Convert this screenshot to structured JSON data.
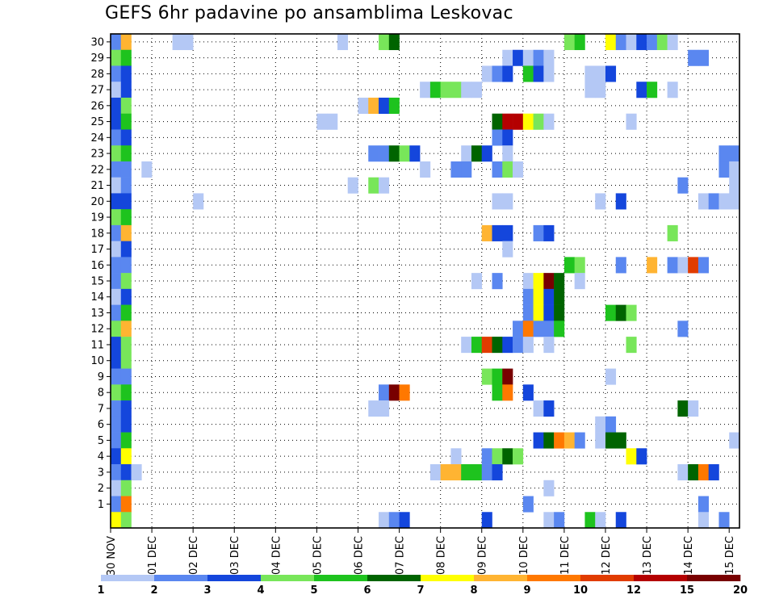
{
  "chart_data": {
    "type": "heatmap",
    "title": "GEFS 6hr padavine po ansamblima Leskovac",
    "xlabel": "",
    "ylabel": "",
    "y_ticks": [
      "1",
      "2",
      "3",
      "4",
      "5",
      "6",
      "7",
      "8",
      "9",
      "10",
      "11",
      "12",
      "13",
      "14",
      "15",
      "16",
      "17",
      "18",
      "19",
      "20",
      "21",
      "22",
      "23",
      "24",
      "25",
      "26",
      "27",
      "28",
      "29",
      "30"
    ],
    "x_ticks": [
      "30 NOV",
      "01 DEC",
      "02 DEC",
      "03 DEC",
      "04 DEC",
      "05 DEC",
      "06 DEC",
      "07 DEC",
      "08 DEC",
      "09 DEC",
      "10 DEC",
      "11 DEC",
      "12 DEC",
      "13 DEC",
      "14 DEC",
      "15 DEC"
    ],
    "x_steps_total": 61,
    "colorbar": {
      "labels": [
        "1",
        "2",
        "3",
        "4",
        "5",
        "6",
        "7",
        "8",
        "9",
        "10",
        "12",
        "15",
        "20"
      ],
      "colors": [
        "#b4c8f5",
        "#5a87f0",
        "#1446dc",
        "#78e65a",
        "#1ec31e",
        "#006400",
        "#ffff00",
        "#ffb432",
        "#ff7800",
        "#e13c00",
        "#b40000",
        "#780000"
      ]
    },
    "grid": true,
    "cells": [
      {
        "m": 30,
        "t": 0,
        "c": 1
      },
      {
        "m": 30,
        "t": 1,
        "c": 7
      },
      {
        "m": 30,
        "t": 6,
        "c": 0
      },
      {
        "m": 30,
        "t": 7,
        "c": 0
      },
      {
        "m": 30,
        "t": 22,
        "c": 0
      },
      {
        "m": 30,
        "t": 26,
        "c": 3
      },
      {
        "m": 30,
        "t": 27,
        "c": 5
      },
      {
        "m": 30,
        "t": 44,
        "c": 3
      },
      {
        "m": 30,
        "t": 45,
        "c": 4
      },
      {
        "m": 30,
        "t": 48,
        "c": 6
      },
      {
        "m": 30,
        "t": 49,
        "c": 1
      },
      {
        "m": 30,
        "t": 50,
        "c": 0
      },
      {
        "m": 30,
        "t": 51,
        "c": 2
      },
      {
        "m": 30,
        "t": 52,
        "c": 1
      },
      {
        "m": 30,
        "t": 53,
        "c": 3
      },
      {
        "m": 30,
        "t": 54,
        "c": 0
      },
      {
        "m": 29,
        "t": 0,
        "c": 3
      },
      {
        "m": 29,
        "t": 1,
        "c": 4
      },
      {
        "m": 29,
        "t": 38,
        "c": 0
      },
      {
        "m": 29,
        "t": 39,
        "c": 2
      },
      {
        "m": 29,
        "t": 40,
        "c": 0
      },
      {
        "m": 29,
        "t": 41,
        "c": 1
      },
      {
        "m": 29,
        "t": 42,
        "c": 0
      },
      {
        "m": 29,
        "t": 56,
        "c": 1
      },
      {
        "m": 29,
        "t": 57,
        "c": 1
      },
      {
        "m": 28,
        "t": 0,
        "c": 1
      },
      {
        "m": 28,
        "t": 1,
        "c": 2
      },
      {
        "m": 28,
        "t": 36,
        "c": 0
      },
      {
        "m": 28,
        "t": 37,
        "c": 1
      },
      {
        "m": 28,
        "t": 38,
        "c": 2
      },
      {
        "m": 28,
        "t": 40,
        "c": 4
      },
      {
        "m": 28,
        "t": 41,
        "c": 2
      },
      {
        "m": 28,
        "t": 42,
        "c": 0
      },
      {
        "m": 28,
        "t": 46,
        "c": 0
      },
      {
        "m": 28,
        "t": 47,
        "c": 0
      },
      {
        "m": 28,
        "t": 48,
        "c": 2
      },
      {
        "m": 27,
        "t": 0,
        "c": 0
      },
      {
        "m": 27,
        "t": 1,
        "c": 2
      },
      {
        "m": 27,
        "t": 30,
        "c": 0
      },
      {
        "m": 27,
        "t": 31,
        "c": 4
      },
      {
        "m": 27,
        "t": 32,
        "c": 3
      },
      {
        "m": 27,
        "t": 33,
        "c": 3
      },
      {
        "m": 27,
        "t": 34,
        "c": 0
      },
      {
        "m": 27,
        "t": 35,
        "c": 0
      },
      {
        "m": 27,
        "t": 46,
        "c": 0
      },
      {
        "m": 27,
        "t": 47,
        "c": 0
      },
      {
        "m": 27,
        "t": 51,
        "c": 2
      },
      {
        "m": 27,
        "t": 52,
        "c": 4
      },
      {
        "m": 27,
        "t": 54,
        "c": 0
      },
      {
        "m": 26,
        "t": 0,
        "c": 2
      },
      {
        "m": 26,
        "t": 1,
        "c": 3
      },
      {
        "m": 26,
        "t": 24,
        "c": 0
      },
      {
        "m": 26,
        "t": 25,
        "c": 7
      },
      {
        "m": 26,
        "t": 26,
        "c": 2
      },
      {
        "m": 26,
        "t": 27,
        "c": 4
      },
      {
        "m": 25,
        "t": 0,
        "c": 2
      },
      {
        "m": 25,
        "t": 1,
        "c": 4
      },
      {
        "m": 25,
        "t": 20,
        "c": 0
      },
      {
        "m": 25,
        "t": 21,
        "c": 0
      },
      {
        "m": 25,
        "t": 37,
        "c": 5
      },
      {
        "m": 25,
        "t": 38,
        "c": 10
      },
      {
        "m": 25,
        "t": 39,
        "c": 10
      },
      {
        "m": 25,
        "t": 40,
        "c": 6
      },
      {
        "m": 25,
        "t": 41,
        "c": 3
      },
      {
        "m": 25,
        "t": 42,
        "c": 0
      },
      {
        "m": 25,
        "t": 50,
        "c": 0
      },
      {
        "m": 24,
        "t": 0,
        "c": 1
      },
      {
        "m": 24,
        "t": 1,
        "c": 2
      },
      {
        "m": 24,
        "t": 37,
        "c": 1
      },
      {
        "m": 24,
        "t": 38,
        "c": 2
      },
      {
        "m": 23,
        "t": 0,
        "c": 3
      },
      {
        "m": 23,
        "t": 1,
        "c": 4
      },
      {
        "m": 23,
        "t": 25,
        "c": 1
      },
      {
        "m": 23,
        "t": 26,
        "c": 1
      },
      {
        "m": 23,
        "t": 27,
        "c": 5
      },
      {
        "m": 23,
        "t": 28,
        "c": 3
      },
      {
        "m": 23,
        "t": 29,
        "c": 2
      },
      {
        "m": 23,
        "t": 34,
        "c": 0
      },
      {
        "m": 23,
        "t": 35,
        "c": 5
      },
      {
        "m": 23,
        "t": 36,
        "c": 2
      },
      {
        "m": 23,
        "t": 38,
        "c": 0
      },
      {
        "m": 23,
        "t": 59,
        "c": 1
      },
      {
        "m": 23,
        "t": 60,
        "c": 1
      },
      {
        "m": 22,
        "t": 0,
        "c": 1
      },
      {
        "m": 22,
        "t": 1,
        "c": 1
      },
      {
        "m": 22,
        "t": 3,
        "c": 0
      },
      {
        "m": 22,
        "t": 30,
        "c": 0
      },
      {
        "m": 22,
        "t": 33,
        "c": 1
      },
      {
        "m": 22,
        "t": 34,
        "c": 1
      },
      {
        "m": 22,
        "t": 37,
        "c": 1
      },
      {
        "m": 22,
        "t": 38,
        "c": 3
      },
      {
        "m": 22,
        "t": 39,
        "c": 0
      },
      {
        "m": 22,
        "t": 59,
        "c": 1
      },
      {
        "m": 22,
        "t": 60,
        "c": 0
      },
      {
        "m": 21,
        "t": 0,
        "c": 0
      },
      {
        "m": 21,
        "t": 1,
        "c": 1
      },
      {
        "m": 21,
        "t": 23,
        "c": 0
      },
      {
        "m": 21,
        "t": 25,
        "c": 3
      },
      {
        "m": 21,
        "t": 26,
        "c": 0
      },
      {
        "m": 21,
        "t": 55,
        "c": 1
      },
      {
        "m": 21,
        "t": 60,
        "c": 0
      },
      {
        "m": 20,
        "t": 0,
        "c": 2
      },
      {
        "m": 20,
        "t": 1,
        "c": 2
      },
      {
        "m": 20,
        "t": 8,
        "c": 0
      },
      {
        "m": 20,
        "t": 37,
        "c": 0
      },
      {
        "m": 20,
        "t": 38,
        "c": 0
      },
      {
        "m": 20,
        "t": 47,
        "c": 0
      },
      {
        "m": 20,
        "t": 49,
        "c": 2
      },
      {
        "m": 20,
        "t": 57,
        "c": 0
      },
      {
        "m": 20,
        "t": 58,
        "c": 1
      },
      {
        "m": 20,
        "t": 59,
        "c": 0
      },
      {
        "m": 20,
        "t": 60,
        "c": 0
      },
      {
        "m": 19,
        "t": 0,
        "c": 3
      },
      {
        "m": 19,
        "t": 1,
        "c": 4
      },
      {
        "m": 18,
        "t": 0,
        "c": 1
      },
      {
        "m": 18,
        "t": 1,
        "c": 7
      },
      {
        "m": 18,
        "t": 36,
        "c": 7
      },
      {
        "m": 18,
        "t": 37,
        "c": 2
      },
      {
        "m": 18,
        "t": 38,
        "c": 2
      },
      {
        "m": 18,
        "t": 41,
        "c": 1
      },
      {
        "m": 18,
        "t": 42,
        "c": 2
      },
      {
        "m": 18,
        "t": 54,
        "c": 3
      },
      {
        "m": 17,
        "t": 0,
        "c": 0
      },
      {
        "m": 17,
        "t": 1,
        "c": 2
      },
      {
        "m": 17,
        "t": 38,
        "c": 0
      },
      {
        "m": 16,
        "t": 0,
        "c": 1
      },
      {
        "m": 16,
        "t": 1,
        "c": 1
      },
      {
        "m": 16,
        "t": 44,
        "c": 4
      },
      {
        "m": 16,
        "t": 45,
        "c": 3
      },
      {
        "m": 16,
        "t": 49,
        "c": 1
      },
      {
        "m": 16,
        "t": 52,
        "c": 7
      },
      {
        "m": 16,
        "t": 54,
        "c": 1
      },
      {
        "m": 16,
        "t": 55,
        "c": 0
      },
      {
        "m": 16,
        "t": 56,
        "c": 9
      },
      {
        "m": 16,
        "t": 57,
        "c": 1
      },
      {
        "m": 15,
        "t": 0,
        "c": 1
      },
      {
        "m": 15,
        "t": 1,
        "c": 3
      },
      {
        "m": 15,
        "t": 35,
        "c": 0
      },
      {
        "m": 15,
        "t": 37,
        "c": 1
      },
      {
        "m": 15,
        "t": 40,
        "c": 0
      },
      {
        "m": 15,
        "t": 41,
        "c": 6
      },
      {
        "m": 15,
        "t": 42,
        "c": 11
      },
      {
        "m": 15,
        "t": 43,
        "c": 5
      },
      {
        "m": 15,
        "t": 45,
        "c": 0
      },
      {
        "m": 14,
        "t": 0,
        "c": 0
      },
      {
        "m": 14,
        "t": 1,
        "c": 2
      },
      {
        "m": 14,
        "t": 40,
        "c": 1
      },
      {
        "m": 14,
        "t": 41,
        "c": 6
      },
      {
        "m": 14,
        "t": 42,
        "c": 2
      },
      {
        "m": 14,
        "t": 43,
        "c": 5
      },
      {
        "m": 13,
        "t": 0,
        "c": 1
      },
      {
        "m": 13,
        "t": 1,
        "c": 4
      },
      {
        "m": 13,
        "t": 40,
        "c": 1
      },
      {
        "m": 13,
        "t": 41,
        "c": 6
      },
      {
        "m": 13,
        "t": 42,
        "c": 2
      },
      {
        "m": 13,
        "t": 43,
        "c": 5
      },
      {
        "m": 13,
        "t": 48,
        "c": 4
      },
      {
        "m": 13,
        "t": 49,
        "c": 5
      },
      {
        "m": 13,
        "t": 50,
        "c": 3
      },
      {
        "m": 12,
        "t": 0,
        "c": 3
      },
      {
        "m": 12,
        "t": 1,
        "c": 7
      },
      {
        "m": 12,
        "t": 39,
        "c": 1
      },
      {
        "m": 12,
        "t": 40,
        "c": 8
      },
      {
        "m": 12,
        "t": 41,
        "c": 1
      },
      {
        "m": 12,
        "t": 42,
        "c": 1
      },
      {
        "m": 12,
        "t": 43,
        "c": 4
      },
      {
        "m": 12,
        "t": 55,
        "c": 1
      },
      {
        "m": 11,
        "t": 0,
        "c": 2
      },
      {
        "m": 11,
        "t": 1,
        "c": 3
      },
      {
        "m": 11,
        "t": 34,
        "c": 0
      },
      {
        "m": 11,
        "t": 35,
        "c": 4
      },
      {
        "m": 11,
        "t": 36,
        "c": 9
      },
      {
        "m": 11,
        "t": 37,
        "c": 5
      },
      {
        "m": 11,
        "t": 38,
        "c": 2
      },
      {
        "m": 11,
        "t": 39,
        "c": 1
      },
      {
        "m": 11,
        "t": 40,
        "c": 0
      },
      {
        "m": 11,
        "t": 42,
        "c": 0
      },
      {
        "m": 11,
        "t": 50,
        "c": 3
      },
      {
        "m": 10,
        "t": 0,
        "c": 2
      },
      {
        "m": 10,
        "t": 1,
        "c": 3
      },
      {
        "m": 9,
        "t": 0,
        "c": 1
      },
      {
        "m": 9,
        "t": 1,
        "c": 1
      },
      {
        "m": 9,
        "t": 36,
        "c": 3
      },
      {
        "m": 9,
        "t": 37,
        "c": 4
      },
      {
        "m": 9,
        "t": 38,
        "c": 11
      },
      {
        "m": 9,
        "t": 48,
        "c": 0
      },
      {
        "m": 8,
        "t": 0,
        "c": 3
      },
      {
        "m": 8,
        "t": 1,
        "c": 4
      },
      {
        "m": 8,
        "t": 26,
        "c": 1
      },
      {
        "m": 8,
        "t": 27,
        "c": 11
      },
      {
        "m": 8,
        "t": 28,
        "c": 8
      },
      {
        "m": 8,
        "t": 37,
        "c": 4
      },
      {
        "m": 8,
        "t": 38,
        "c": 8
      },
      {
        "m": 8,
        "t": 40,
        "c": 2
      },
      {
        "m": 7,
        "t": 0,
        "c": 1
      },
      {
        "m": 7,
        "t": 1,
        "c": 2
      },
      {
        "m": 7,
        "t": 25,
        "c": 0
      },
      {
        "m": 7,
        "t": 26,
        "c": 0
      },
      {
        "m": 7,
        "t": 41,
        "c": 0
      },
      {
        "m": 7,
        "t": 42,
        "c": 2
      },
      {
        "m": 7,
        "t": 55,
        "c": 5
      },
      {
        "m": 7,
        "t": 56,
        "c": 0
      },
      {
        "m": 6,
        "t": 0,
        "c": 1
      },
      {
        "m": 6,
        "t": 1,
        "c": 2
      },
      {
        "m": 6,
        "t": 47,
        "c": 0
      },
      {
        "m": 6,
        "t": 48,
        "c": 1
      },
      {
        "m": 5,
        "t": 0,
        "c": 1
      },
      {
        "m": 5,
        "t": 1,
        "c": 4
      },
      {
        "m": 5,
        "t": 41,
        "c": 2
      },
      {
        "m": 5,
        "t": 42,
        "c": 5
      },
      {
        "m": 5,
        "t": 43,
        "c": 8
      },
      {
        "m": 5,
        "t": 44,
        "c": 7
      },
      {
        "m": 5,
        "t": 45,
        "c": 1
      },
      {
        "m": 5,
        "t": 47,
        "c": 0
      },
      {
        "m": 5,
        "t": 48,
        "c": 5
      },
      {
        "m": 5,
        "t": 49,
        "c": 5
      },
      {
        "m": 5,
        "t": 60,
        "c": 0
      },
      {
        "m": 4,
        "t": 0,
        "c": 2
      },
      {
        "m": 4,
        "t": 1,
        "c": 6
      },
      {
        "m": 4,
        "t": 33,
        "c": 0
      },
      {
        "m": 4,
        "t": 36,
        "c": 1
      },
      {
        "m": 4,
        "t": 37,
        "c": 3
      },
      {
        "m": 4,
        "t": 38,
        "c": 5
      },
      {
        "m": 4,
        "t": 39,
        "c": 3
      },
      {
        "m": 4,
        "t": 50,
        "c": 6
      },
      {
        "m": 4,
        "t": 51,
        "c": 2
      },
      {
        "m": 3,
        "t": 0,
        "c": 1
      },
      {
        "m": 3,
        "t": 1,
        "c": 2
      },
      {
        "m": 3,
        "t": 2,
        "c": 0
      },
      {
        "m": 3,
        "t": 31,
        "c": 0
      },
      {
        "m": 3,
        "t": 32,
        "c": 7
      },
      {
        "m": 3,
        "t": 33,
        "c": 7
      },
      {
        "m": 3,
        "t": 34,
        "c": 4
      },
      {
        "m": 3,
        "t": 35,
        "c": 4
      },
      {
        "m": 3,
        "t": 36,
        "c": 1
      },
      {
        "m": 3,
        "t": 37,
        "c": 2
      },
      {
        "m": 3,
        "t": 55,
        "c": 0
      },
      {
        "m": 3,
        "t": 56,
        "c": 5
      },
      {
        "m": 3,
        "t": 57,
        "c": 8
      },
      {
        "m": 3,
        "t": 58,
        "c": 2
      },
      {
        "m": 2,
        "t": 0,
        "c": 0
      },
      {
        "m": 2,
        "t": 1,
        "c": 3
      },
      {
        "m": 2,
        "t": 42,
        "c": 0
      },
      {
        "m": 1,
        "t": 0,
        "c": 1
      },
      {
        "m": 1,
        "t": 1,
        "c": 8
      },
      {
        "m": 1,
        "t": 40,
        "c": 1
      },
      {
        "m": 1,
        "t": 57,
        "c": 1
      },
      {
        "m": 0,
        "t": 0,
        "c": 6
      },
      {
        "m": 0,
        "t": 1,
        "c": 3
      },
      {
        "m": 0,
        "t": 26,
        "c": 0
      },
      {
        "m": 0,
        "t": 27,
        "c": 1
      },
      {
        "m": 0,
        "t": 28,
        "c": 2
      },
      {
        "m": 0,
        "t": 36,
        "c": 2
      },
      {
        "m": 0,
        "t": 42,
        "c": 0
      },
      {
        "m": 0,
        "t": 43,
        "c": 1
      },
      {
        "m": 0,
        "t": 46,
        "c": 4
      },
      {
        "m": 0,
        "t": 47,
        "c": 0
      },
      {
        "m": 0,
        "t": 49,
        "c": 2
      },
      {
        "m": 0,
        "t": 57,
        "c": 0
      },
      {
        "m": 0,
        "t": 59,
        "c": 1
      }
    ]
  }
}
